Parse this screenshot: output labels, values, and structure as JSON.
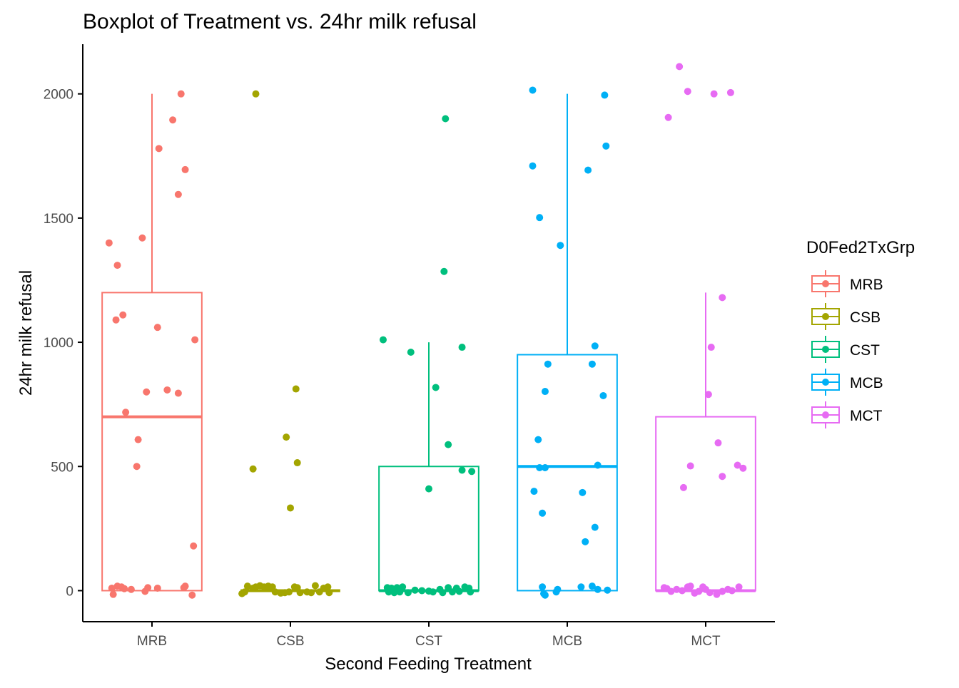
{
  "chart_data": {
    "type": "boxplot",
    "title": "Boxplot of Treatment vs. 24hr milk refusal",
    "xlabel": "Second Feeding Treatment",
    "ylabel": "24hr milk refusal",
    "ylim": [
      -125,
      2200
    ],
    "yticks": [
      0,
      500,
      1000,
      1500,
      2000
    ],
    "categories": [
      "MRB",
      "CSB",
      "CST",
      "MCB",
      "MCT"
    ],
    "legend": {
      "title": "D0Fed2TxGrp",
      "position": "right",
      "items": [
        "MRB",
        "CSB",
        "CST",
        "MCB",
        "MCT"
      ]
    },
    "colors": {
      "MRB": "#F8766D",
      "CSB": "#A3A500",
      "CST": "#00BF7D",
      "MCB": "#00B0F6",
      "MCT": "#E76BF3",
      "axis": "#000000",
      "tick_label": "#4D4D4D"
    },
    "series": [
      {
        "name": "MRB",
        "box": {
          "lower_whisker": 0,
          "q1": 0,
          "median": 700,
          "q3": 1200,
          "upper_whisker": 2000
        },
        "points": [
          {
            "dx": -0.31,
            "y": 1400
          },
          {
            "dx": -0.25,
            "y": 1310
          },
          {
            "dx": -0.07,
            "y": 1420
          },
          {
            "dx": 0.05,
            "y": 1780
          },
          {
            "dx": 0.15,
            "y": 1895
          },
          {
            "dx": 0.21,
            "y": 2000
          },
          {
            "dx": 0.24,
            "y": 1695
          },
          {
            "dx": 0.19,
            "y": 1595
          },
          {
            "dx": -0.26,
            "y": 1090
          },
          {
            "dx": -0.21,
            "y": 1110
          },
          {
            "dx": 0.04,
            "y": 1060
          },
          {
            "dx": 0.31,
            "y": 1010
          },
          {
            "dx": -0.04,
            "y": 800
          },
          {
            "dx": 0.11,
            "y": 808
          },
          {
            "dx": 0.19,
            "y": 795
          },
          {
            "dx": -0.19,
            "y": 718
          },
          {
            "dx": -0.1,
            "y": 608
          },
          {
            "dx": -0.11,
            "y": 500
          },
          {
            "dx": 0.3,
            "y": 180
          },
          {
            "dx": -0.29,
            "y": 10
          },
          {
            "dx": -0.28,
            "y": -15
          },
          {
            "dx": -0.25,
            "y": 18
          },
          {
            "dx": -0.22,
            "y": 15
          },
          {
            "dx": -0.2,
            "y": 8
          },
          {
            "dx": -0.15,
            "y": 5
          },
          {
            "dx": -0.05,
            "y": -3
          },
          {
            "dx": -0.03,
            "y": 12
          },
          {
            "dx": 0.04,
            "y": 10
          },
          {
            "dx": 0.23,
            "y": 12
          },
          {
            "dx": 0.24,
            "y": 18
          },
          {
            "dx": 0.29,
            "y": -18
          }
        ]
      },
      {
        "name": "CSB",
        "box": {
          "lower_whisker": 0,
          "q1": 0,
          "median": 0,
          "q3": 0,
          "upper_whisker": 0
        },
        "points": [
          {
            "dx": -0.25,
            "y": 2000
          },
          {
            "dx": 0.04,
            "y": 812
          },
          {
            "dx": -0.03,
            "y": 618
          },
          {
            "dx": 0.05,
            "y": 515
          },
          {
            "dx": -0.27,
            "y": 490
          },
          {
            "dx": 0.0,
            "y": 333
          },
          {
            "dx": -0.35,
            "y": -12
          },
          {
            "dx": -0.33,
            "y": -5
          },
          {
            "dx": -0.31,
            "y": 18
          },
          {
            "dx": -0.27,
            "y": 10
          },
          {
            "dx": -0.25,
            "y": 15
          },
          {
            "dx": -0.22,
            "y": 20
          },
          {
            "dx": -0.19,
            "y": 15
          },
          {
            "dx": -0.16,
            "y": 18
          },
          {
            "dx": -0.13,
            "y": 15
          },
          {
            "dx": -0.11,
            "y": -5
          },
          {
            "dx": -0.07,
            "y": -10
          },
          {
            "dx": -0.04,
            "y": -8
          },
          {
            "dx": -0.01,
            "y": -5
          },
          {
            "dx": 0.03,
            "y": 15
          },
          {
            "dx": 0.05,
            "y": 12
          },
          {
            "dx": 0.07,
            "y": -8
          },
          {
            "dx": 0.12,
            "y": -5
          },
          {
            "dx": 0.15,
            "y": -8
          },
          {
            "dx": 0.18,
            "y": 20
          },
          {
            "dx": 0.21,
            "y": -5
          },
          {
            "dx": 0.24,
            "y": 10
          },
          {
            "dx": 0.27,
            "y": 15
          },
          {
            "dx": 0.28,
            "y": -8
          }
        ]
      },
      {
        "name": "CST",
        "box": {
          "lower_whisker": 0,
          "q1": 0,
          "median": 0,
          "q3": 500,
          "upper_whisker": 1000
        },
        "points": [
          {
            "dx": 0.12,
            "y": 1900
          },
          {
            "dx": 0.11,
            "y": 1285
          },
          {
            "dx": -0.33,
            "y": 1010
          },
          {
            "dx": -0.13,
            "y": 960
          },
          {
            "dx": 0.24,
            "y": 980
          },
          {
            "dx": 0.05,
            "y": 818
          },
          {
            "dx": 0.14,
            "y": 588
          },
          {
            "dx": 0.24,
            "y": 485
          },
          {
            "dx": 0.31,
            "y": 480
          },
          {
            "dx": 0.0,
            "y": 410
          },
          {
            "dx": -0.3,
            "y": 12
          },
          {
            "dx": -0.29,
            "y": -5
          },
          {
            "dx": -0.27,
            "y": 10
          },
          {
            "dx": -0.25,
            "y": -8
          },
          {
            "dx": -0.23,
            "y": 12
          },
          {
            "dx": -0.21,
            "y": -5
          },
          {
            "dx": -0.19,
            "y": 15
          },
          {
            "dx": -0.15,
            "y": -8
          },
          {
            "dx": -0.1,
            "y": 2
          },
          {
            "dx": -0.05,
            "y": 0
          },
          {
            "dx": 0.0,
            "y": -2
          },
          {
            "dx": 0.03,
            "y": -5
          },
          {
            "dx": 0.08,
            "y": 5
          },
          {
            "dx": 0.1,
            "y": -8
          },
          {
            "dx": 0.14,
            "y": 12
          },
          {
            "dx": 0.17,
            "y": -5
          },
          {
            "dx": 0.2,
            "y": 10
          },
          {
            "dx": 0.22,
            "y": -3
          },
          {
            "dx": 0.26,
            "y": 15
          },
          {
            "dx": 0.29,
            "y": 10
          },
          {
            "dx": 0.3,
            "y": -5
          }
        ]
      },
      {
        "name": "MCB",
        "box": {
          "lower_whisker": 0,
          "q1": 0,
          "median": 500,
          "q3": 950,
          "upper_whisker": 2000
        },
        "points": [
          {
            "dx": -0.25,
            "y": 2015
          },
          {
            "dx": 0.27,
            "y": 1995
          },
          {
            "dx": 0.28,
            "y": 1790
          },
          {
            "dx": -0.25,
            "y": 1710
          },
          {
            "dx": 0.15,
            "y": 1693
          },
          {
            "dx": -0.2,
            "y": 1502
          },
          {
            "dx": -0.05,
            "y": 1390
          },
          {
            "dx": 0.2,
            "y": 985
          },
          {
            "dx": -0.14,
            "y": 912
          },
          {
            "dx": 0.18,
            "y": 912
          },
          {
            "dx": -0.16,
            "y": 802
          },
          {
            "dx": 0.26,
            "y": 785
          },
          {
            "dx": -0.21,
            "y": 608
          },
          {
            "dx": -0.2,
            "y": 495
          },
          {
            "dx": -0.16,
            "y": 495
          },
          {
            "dx": 0.22,
            "y": 505
          },
          {
            "dx": -0.24,
            "y": 400
          },
          {
            "dx": 0.11,
            "y": 395
          },
          {
            "dx": -0.18,
            "y": 312
          },
          {
            "dx": 0.2,
            "y": 255
          },
          {
            "dx": 0.13,
            "y": 197
          },
          {
            "dx": -0.18,
            "y": 15
          },
          {
            "dx": -0.17,
            "y": -12
          },
          {
            "dx": -0.16,
            "y": -18
          },
          {
            "dx": -0.08,
            "y": -5
          },
          {
            "dx": -0.07,
            "y": 5
          },
          {
            "dx": 0.1,
            "y": 15
          },
          {
            "dx": 0.18,
            "y": 18
          },
          {
            "dx": 0.22,
            "y": 5
          },
          {
            "dx": 0.29,
            "y": 2
          }
        ]
      },
      {
        "name": "MCT",
        "box": {
          "lower_whisker": 0,
          "q1": 0,
          "median": 0,
          "q3": 700,
          "upper_whisker": 1200
        },
        "points": [
          {
            "dx": -0.19,
            "y": 2110
          },
          {
            "dx": -0.13,
            "y": 2010
          },
          {
            "dx": 0.06,
            "y": 2000
          },
          {
            "dx": 0.18,
            "y": 2005
          },
          {
            "dx": -0.27,
            "y": 1905
          },
          {
            "dx": 0.12,
            "y": 1180
          },
          {
            "dx": 0.04,
            "y": 980
          },
          {
            "dx": 0.02,
            "y": 790
          },
          {
            "dx": 0.09,
            "y": 595
          },
          {
            "dx": -0.11,
            "y": 502
          },
          {
            "dx": 0.23,
            "y": 505
          },
          {
            "dx": 0.27,
            "y": 493
          },
          {
            "dx": 0.12,
            "y": 460
          },
          {
            "dx": -0.16,
            "y": 415
          },
          {
            "dx": -0.3,
            "y": 12
          },
          {
            "dx": -0.28,
            "y": 8
          },
          {
            "dx": -0.25,
            "y": -3
          },
          {
            "dx": -0.21,
            "y": 5
          },
          {
            "dx": -0.17,
            "y": 0
          },
          {
            "dx": -0.13,
            "y": 15
          },
          {
            "dx": -0.11,
            "y": 18
          },
          {
            "dx": -0.08,
            "y": -10
          },
          {
            "dx": -0.05,
            "y": -3
          },
          {
            "dx": -0.02,
            "y": 15
          },
          {
            "dx": 0.0,
            "y": 5
          },
          {
            "dx": 0.03,
            "y": -8
          },
          {
            "dx": 0.08,
            "y": -15
          },
          {
            "dx": 0.12,
            "y": -3
          },
          {
            "dx": 0.16,
            "y": 5
          },
          {
            "dx": 0.19,
            "y": 0
          },
          {
            "dx": 0.24,
            "y": 15
          }
        ]
      }
    ]
  }
}
